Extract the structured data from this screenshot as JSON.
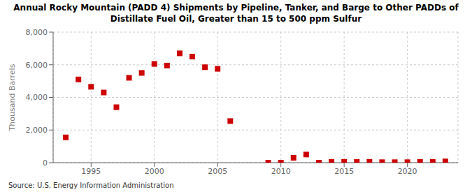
{
  "chart_data": {
    "type": "scatter",
    "title": "Annual Rocky Mountain (PADD 4) Shipments by Pipeline, Tanker, and Barge to Other PADDs of\nDistillate Fuel Oil, Greater than 15 to 500 ppm Sulfur",
    "ylabel": "Thousand Barrels",
    "source": "Source: U.S. Energy Information Administration",
    "x": [
      1993,
      1994,
      1995,
      1996,
      1997,
      1998,
      1999,
      2000,
      2001,
      2002,
      2003,
      2004,
      2005,
      2006,
      2009,
      2010,
      2011,
      2012,
      2013,
      2014,
      2015,
      2016,
      2017,
      2018,
      2019,
      2020,
      2021,
      2022,
      2023
    ],
    "values": [
      1550,
      5100,
      4650,
      4300,
      3400,
      5200,
      5500,
      6050,
      5950,
      6700,
      6500,
      5850,
      5750,
      2550,
      0,
      0,
      300,
      500,
      0,
      50,
      50,
      50,
      50,
      30,
      30,
      30,
      50,
      50,
      80
    ],
    "color": "#cc0000",
    "marker": "square",
    "grid": true,
    "xlim": [
      1992,
      2024
    ],
    "xticks": [
      1995,
      2000,
      2005,
      2010,
      2015,
      2020
    ],
    "ylim": [
      0,
      8000
    ],
    "yticks": [
      0,
      {
        "value": 2000,
        "label": "2,000"
      },
      {
        "value": 4000,
        "label": "4,000"
      },
      {
        "value": 6000,
        "label": "6,000"
      },
      {
        "value": 8000,
        "label": "8,000"
      }
    ]
  }
}
